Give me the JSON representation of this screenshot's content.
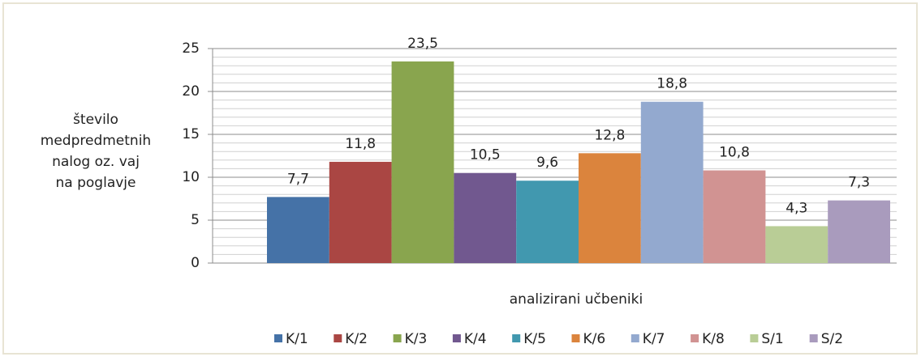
{
  "chart_data": {
    "type": "bar",
    "ylabel": [
      "število",
      "medpredmetnih",
      "nalog oz. vaj",
      "na poglavje"
    ],
    "xlabel": "analizirani učbeniki",
    "categories": [
      null
    ],
    "series": [
      {
        "name": "K/1",
        "color": "#4572a7",
        "values": [
          7.7
        ],
        "value_labels": [
          "7,7"
        ]
      },
      {
        "name": "K/2",
        "color": "#aa4643",
        "values": [
          11.8
        ],
        "value_labels": [
          "11,8"
        ]
      },
      {
        "name": "K/3",
        "color": "#89a54e",
        "values": [
          23.5
        ],
        "value_labels": [
          "23,5"
        ]
      },
      {
        "name": "K/4",
        "color": "#71588f",
        "values": [
          10.5
        ],
        "value_labels": [
          "10,5"
        ]
      },
      {
        "name": "K/5",
        "color": "#4198af",
        "values": [
          9.6
        ],
        "value_labels": [
          "9,6"
        ]
      },
      {
        "name": "K/6",
        "color": "#db843d",
        "values": [
          12.8
        ],
        "value_labels": [
          "12,8"
        ]
      },
      {
        "name": "K/7",
        "color": "#93a9cf",
        "values": [
          18.8
        ],
        "value_labels": [
          "18,8"
        ]
      },
      {
        "name": "K/8",
        "color": "#d19392",
        "values": [
          10.8
        ],
        "value_labels": [
          "10,8"
        ]
      },
      {
        "name": "S/1",
        "color": "#b9cd96",
        "values": [
          4.3
        ],
        "value_labels": [
          "4,3"
        ]
      },
      {
        "name": "S/2",
        "color": "#a99bbd",
        "values": [
          7.3
        ],
        "value_labels": [
          "7,3"
        ]
      }
    ],
    "ylim": [
      0,
      25
    ],
    "yticks": [
      0,
      5,
      10,
      15,
      20,
      25
    ],
    "grid": true,
    "minor_grid": true,
    "legend": "bottom"
  }
}
